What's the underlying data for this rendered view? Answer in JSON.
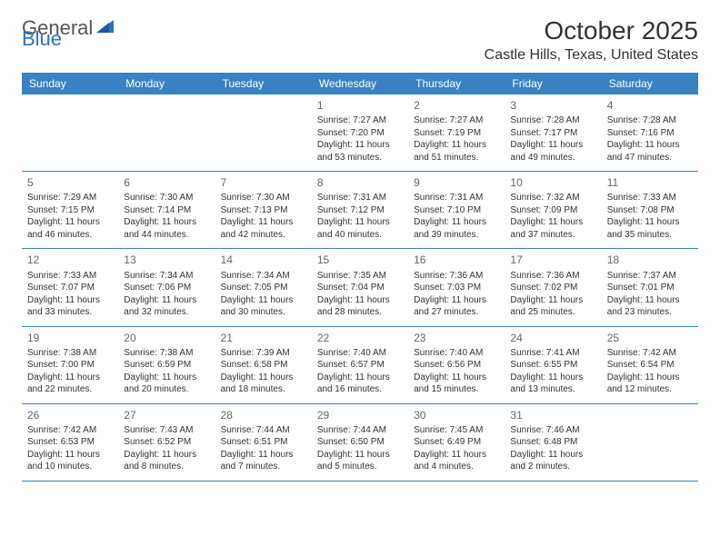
{
  "logo": {
    "text_part1": "General",
    "text_part2": "Blue",
    "color_gray": "#555555",
    "color_blue": "#2e73b8"
  },
  "header": {
    "month_title": "October 2025",
    "location": "Castle Hills, Texas, United States"
  },
  "colors": {
    "header_bg": "#3b82c4",
    "header_text": "#ffffff",
    "border": "#3b82c4",
    "day_number": "#666666",
    "body_text": "#333333",
    "background": "#ffffff"
  },
  "day_names": [
    "Sunday",
    "Monday",
    "Tuesday",
    "Wednesday",
    "Thursday",
    "Friday",
    "Saturday"
  ],
  "weeks": [
    [
      {
        "n": "",
        "sunrise": "",
        "sunset": "",
        "daylight": ""
      },
      {
        "n": "",
        "sunrise": "",
        "sunset": "",
        "daylight": ""
      },
      {
        "n": "",
        "sunrise": "",
        "sunset": "",
        "daylight": ""
      },
      {
        "n": "1",
        "sunrise": "Sunrise: 7:27 AM",
        "sunset": "Sunset: 7:20 PM",
        "daylight": "Daylight: 11 hours and 53 minutes."
      },
      {
        "n": "2",
        "sunrise": "Sunrise: 7:27 AM",
        "sunset": "Sunset: 7:19 PM",
        "daylight": "Daylight: 11 hours and 51 minutes."
      },
      {
        "n": "3",
        "sunrise": "Sunrise: 7:28 AM",
        "sunset": "Sunset: 7:17 PM",
        "daylight": "Daylight: 11 hours and 49 minutes."
      },
      {
        "n": "4",
        "sunrise": "Sunrise: 7:28 AM",
        "sunset": "Sunset: 7:16 PM",
        "daylight": "Daylight: 11 hours and 47 minutes."
      }
    ],
    [
      {
        "n": "5",
        "sunrise": "Sunrise: 7:29 AM",
        "sunset": "Sunset: 7:15 PM",
        "daylight": "Daylight: 11 hours and 46 minutes."
      },
      {
        "n": "6",
        "sunrise": "Sunrise: 7:30 AM",
        "sunset": "Sunset: 7:14 PM",
        "daylight": "Daylight: 11 hours and 44 minutes."
      },
      {
        "n": "7",
        "sunrise": "Sunrise: 7:30 AM",
        "sunset": "Sunset: 7:13 PM",
        "daylight": "Daylight: 11 hours and 42 minutes."
      },
      {
        "n": "8",
        "sunrise": "Sunrise: 7:31 AM",
        "sunset": "Sunset: 7:12 PM",
        "daylight": "Daylight: 11 hours and 40 minutes."
      },
      {
        "n": "9",
        "sunrise": "Sunrise: 7:31 AM",
        "sunset": "Sunset: 7:10 PM",
        "daylight": "Daylight: 11 hours and 39 minutes."
      },
      {
        "n": "10",
        "sunrise": "Sunrise: 7:32 AM",
        "sunset": "Sunset: 7:09 PM",
        "daylight": "Daylight: 11 hours and 37 minutes."
      },
      {
        "n": "11",
        "sunrise": "Sunrise: 7:33 AM",
        "sunset": "Sunset: 7:08 PM",
        "daylight": "Daylight: 11 hours and 35 minutes."
      }
    ],
    [
      {
        "n": "12",
        "sunrise": "Sunrise: 7:33 AM",
        "sunset": "Sunset: 7:07 PM",
        "daylight": "Daylight: 11 hours and 33 minutes."
      },
      {
        "n": "13",
        "sunrise": "Sunrise: 7:34 AM",
        "sunset": "Sunset: 7:06 PM",
        "daylight": "Daylight: 11 hours and 32 minutes."
      },
      {
        "n": "14",
        "sunrise": "Sunrise: 7:34 AM",
        "sunset": "Sunset: 7:05 PM",
        "daylight": "Daylight: 11 hours and 30 minutes."
      },
      {
        "n": "15",
        "sunrise": "Sunrise: 7:35 AM",
        "sunset": "Sunset: 7:04 PM",
        "daylight": "Daylight: 11 hours and 28 minutes."
      },
      {
        "n": "16",
        "sunrise": "Sunrise: 7:36 AM",
        "sunset": "Sunset: 7:03 PM",
        "daylight": "Daylight: 11 hours and 27 minutes."
      },
      {
        "n": "17",
        "sunrise": "Sunrise: 7:36 AM",
        "sunset": "Sunset: 7:02 PM",
        "daylight": "Daylight: 11 hours and 25 minutes."
      },
      {
        "n": "18",
        "sunrise": "Sunrise: 7:37 AM",
        "sunset": "Sunset: 7:01 PM",
        "daylight": "Daylight: 11 hours and 23 minutes."
      }
    ],
    [
      {
        "n": "19",
        "sunrise": "Sunrise: 7:38 AM",
        "sunset": "Sunset: 7:00 PM",
        "daylight": "Daylight: 11 hours and 22 minutes."
      },
      {
        "n": "20",
        "sunrise": "Sunrise: 7:38 AM",
        "sunset": "Sunset: 6:59 PM",
        "daylight": "Daylight: 11 hours and 20 minutes."
      },
      {
        "n": "21",
        "sunrise": "Sunrise: 7:39 AM",
        "sunset": "Sunset: 6:58 PM",
        "daylight": "Daylight: 11 hours and 18 minutes."
      },
      {
        "n": "22",
        "sunrise": "Sunrise: 7:40 AM",
        "sunset": "Sunset: 6:57 PM",
        "daylight": "Daylight: 11 hours and 16 minutes."
      },
      {
        "n": "23",
        "sunrise": "Sunrise: 7:40 AM",
        "sunset": "Sunset: 6:56 PM",
        "daylight": "Daylight: 11 hours and 15 minutes."
      },
      {
        "n": "24",
        "sunrise": "Sunrise: 7:41 AM",
        "sunset": "Sunset: 6:55 PM",
        "daylight": "Daylight: 11 hours and 13 minutes."
      },
      {
        "n": "25",
        "sunrise": "Sunrise: 7:42 AM",
        "sunset": "Sunset: 6:54 PM",
        "daylight": "Daylight: 11 hours and 12 minutes."
      }
    ],
    [
      {
        "n": "26",
        "sunrise": "Sunrise: 7:42 AM",
        "sunset": "Sunset: 6:53 PM",
        "daylight": "Daylight: 11 hours and 10 minutes."
      },
      {
        "n": "27",
        "sunrise": "Sunrise: 7:43 AM",
        "sunset": "Sunset: 6:52 PM",
        "daylight": "Daylight: 11 hours and 8 minutes."
      },
      {
        "n": "28",
        "sunrise": "Sunrise: 7:44 AM",
        "sunset": "Sunset: 6:51 PM",
        "daylight": "Daylight: 11 hours and 7 minutes."
      },
      {
        "n": "29",
        "sunrise": "Sunrise: 7:44 AM",
        "sunset": "Sunset: 6:50 PM",
        "daylight": "Daylight: 11 hours and 5 minutes."
      },
      {
        "n": "30",
        "sunrise": "Sunrise: 7:45 AM",
        "sunset": "Sunset: 6:49 PM",
        "daylight": "Daylight: 11 hours and 4 minutes."
      },
      {
        "n": "31",
        "sunrise": "Sunrise: 7:46 AM",
        "sunset": "Sunset: 6:48 PM",
        "daylight": "Daylight: 11 hours and 2 minutes."
      },
      {
        "n": "",
        "sunrise": "",
        "sunset": "",
        "daylight": ""
      }
    ]
  ]
}
